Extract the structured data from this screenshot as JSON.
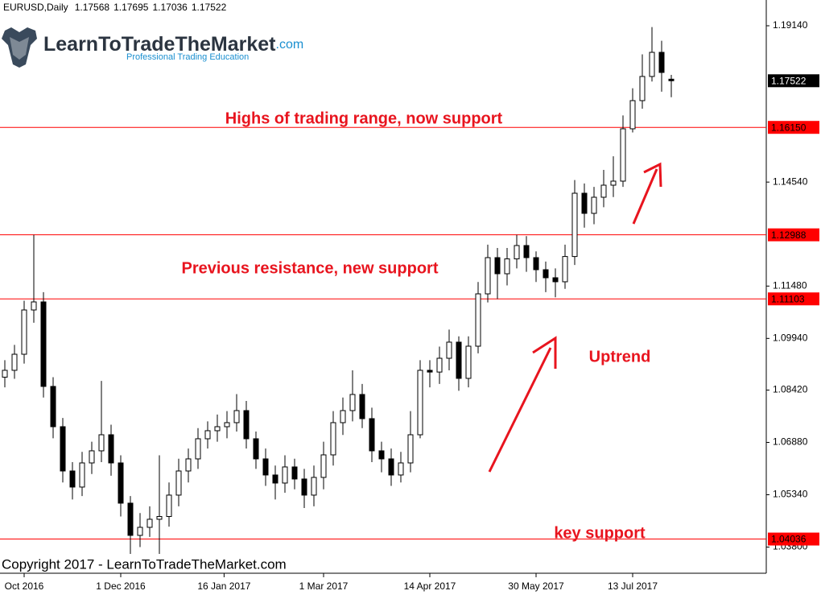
{
  "chart_data": {
    "type": "candlestick",
    "symbol": "EURUSD,Daily",
    "candles": [
      [
        1.088,
        1.093,
        1.085,
        1.09001
      ],
      [
        1.09001,
        1.0975,
        1.0875,
        1.09474
      ],
      [
        1.09474,
        1.1105,
        1.092,
        1.10777
      ],
      [
        1.10777,
        1.12988,
        1.104,
        1.11014
      ],
      [
        1.11014,
        1.113,
        1.082,
        1.08527
      ],
      [
        1.08527,
        1.088,
        1.07,
        1.07342
      ],
      [
        1.07342,
        1.076,
        1.057,
        1.06039
      ],
      [
        1.06039,
        1.063,
        1.052,
        1.05566
      ],
      [
        1.05566,
        1.066,
        1.053,
        1.06276
      ],
      [
        1.06276,
        1.069,
        1.0595,
        1.06632
      ],
      [
        1.06632,
        1.0869,
        1.063,
        1.07105
      ],
      [
        1.07105,
        1.074,
        1.059,
        1.06276
      ],
      [
        1.06276,
        1.065,
        1.047,
        1.05092
      ],
      [
        1.05092,
        1.053,
        1.036,
        1.04144
      ],
      [
        1.04144,
        1.048,
        1.038,
        1.04381
      ],
      [
        1.04381,
        1.05,
        1.041,
        1.04618
      ],
      [
        1.04618,
        1.065,
        1.036,
        1.047
      ],
      [
        1.047,
        1.057,
        1.044,
        1.05329
      ],
      [
        1.05329,
        1.064,
        1.05,
        1.06039
      ],
      [
        1.06039,
        1.067,
        1.057,
        1.06395
      ],
      [
        1.06395,
        1.073,
        1.061,
        1.06987
      ],
      [
        1.06987,
        1.075,
        1.067,
        1.07224
      ],
      [
        1.07224,
        1.077,
        1.069,
        1.07342
      ],
      [
        1.07342,
        1.078,
        1.07,
        1.07461
      ],
      [
        1.07461,
        1.083,
        1.072,
        1.07816
      ],
      [
        1.07816,
        1.081,
        1.067,
        1.06987
      ],
      [
        1.06987,
        1.072,
        1.061,
        1.06395
      ],
      [
        1.06395,
        1.067,
        1.056,
        1.05921
      ],
      [
        1.05921,
        1.062,
        1.052,
        1.05684
      ],
      [
        1.05684,
        1.065,
        1.054,
        1.06158
      ],
      [
        1.06158,
        1.064,
        1.055,
        1.05803
      ],
      [
        1.05803,
        1.061,
        1.0495,
        1.05329
      ],
      [
        1.05329,
        1.062,
        1.05,
        1.0585
      ],
      [
        1.0585,
        1.069,
        1.055,
        1.06513
      ],
      [
        1.06513,
        1.078,
        1.062,
        1.07461
      ],
      [
        1.07461,
        1.082,
        1.071,
        1.07816
      ],
      [
        1.07816,
        1.09,
        1.075,
        1.0829
      ],
      [
        1.0829,
        1.086,
        1.073,
        1.07579
      ],
      [
        1.07579,
        1.079,
        1.063,
        1.06632
      ],
      [
        1.06632,
        1.069,
        1.06,
        1.06395
      ],
      [
        1.06395,
        1.067,
        1.056,
        1.05921
      ],
      [
        1.05921,
        1.066,
        1.057,
        1.06276
      ],
      [
        1.06276,
        1.078,
        1.06,
        1.07105
      ],
      [
        1.07105,
        1.093,
        1.07,
        1.09001
      ],
      [
        1.09001,
        1.093,
        1.085,
        1.0895
      ],
      [
        1.0895,
        1.097,
        1.086,
        1.09356
      ],
      [
        1.09356,
        1.102,
        1.09,
        1.0983
      ],
      [
        1.0983,
        1.1,
        1.084,
        1.08764
      ],
      [
        1.08764,
        1.1,
        1.085,
        1.09711
      ],
      [
        1.09711,
        1.116,
        1.095,
        1.11251
      ],
      [
        1.11251,
        1.127,
        1.11,
        1.12317
      ],
      [
        1.12317,
        1.126,
        1.111,
        1.11843
      ],
      [
        1.11843,
        1.126,
        1.115,
        1.1228
      ],
      [
        1.1228,
        1.12988,
        1.12,
        1.12673
      ],
      [
        1.12673,
        1.1295,
        1.119,
        1.12317
      ],
      [
        1.12317,
        1.125,
        1.116,
        1.11962
      ],
      [
        1.11962,
        1.122,
        1.113,
        1.11725
      ],
      [
        1.11725,
        1.12,
        1.1115,
        1.11607
      ],
      [
        1.11607,
        1.127,
        1.114,
        1.1235
      ],
      [
        1.1235,
        1.146,
        1.121,
        1.14212
      ],
      [
        1.14212,
        1.145,
        1.132,
        1.1362
      ],
      [
        1.1362,
        1.144,
        1.133,
        1.14094
      ],
      [
        1.14094,
        1.149,
        1.138,
        1.14449
      ],
      [
        1.14449,
        1.153,
        1.141,
        1.14568
      ],
      [
        1.14568,
        1.165,
        1.144,
        1.16108
      ],
      [
        1.16108,
        1.173,
        1.16,
        1.16937
      ],
      [
        1.16937,
        1.183,
        1.167,
        1.17648
      ],
      [
        1.17648,
        1.191,
        1.175,
        1.18358
      ],
      [
        1.18358,
        1.187,
        1.172,
        1.17766
      ],
      [
        1.17568,
        1.17695,
        1.17036,
        1.17522
      ]
    ],
    "up_color": "#ffffff",
    "down_color": "#000000",
    "ylim": [
      1.0303,
      1.19898
    ],
    "yticks": [
      {
        "value": 1.1914,
        "label": "1.19140"
      },
      {
        "value": 1.1454,
        "label": "1.14540"
      },
      {
        "value": 1.1148,
        "label": "1.11480"
      },
      {
        "value": 1.0994,
        "label": "1.09940"
      },
      {
        "value": 1.0842,
        "label": "1.08420"
      },
      {
        "value": 1.0688,
        "label": "1.06880"
      },
      {
        "value": 1.0534,
        "label": "1.05340"
      },
      {
        "value": 1.038,
        "label": "1.03800"
      }
    ],
    "xticks": [
      {
        "value": 2,
        "label": "Oct 2016"
      },
      {
        "value": 12,
        "label": "1 Dec 2016"
      },
      {
        "value": 22.7,
        "label": "16 Jan 2017"
      },
      {
        "value": 33,
        "label": "1 Mar 2017"
      },
      {
        "value": 44,
        "label": "14 Apr 2017"
      },
      {
        "value": 55,
        "label": "30 May 2017"
      },
      {
        "value": 65,
        "label": "13 Jul 2017"
      }
    ],
    "levels": [
      {
        "value": 1.1615,
        "label": "1.16150"
      },
      {
        "value": 1.12988,
        "label": "1.12988"
      },
      {
        "value": 1.11103,
        "label": "1.11103"
      },
      {
        "value": 1.04036,
        "label": "1.04036"
      }
    ],
    "level_color": "#ff0000",
    "annotations": [
      "Highs of trading range, now support",
      "Previous resistance, new support",
      "Uptrend",
      "key support"
    ]
  },
  "logo": {
    "name": "LearnToTradeTheMarket",
    "domain": ".com",
    "tagline": "Professional Trading Education"
  },
  "copyright": "Copyright 2017 - LearnToTradeTheMarket.com"
}
